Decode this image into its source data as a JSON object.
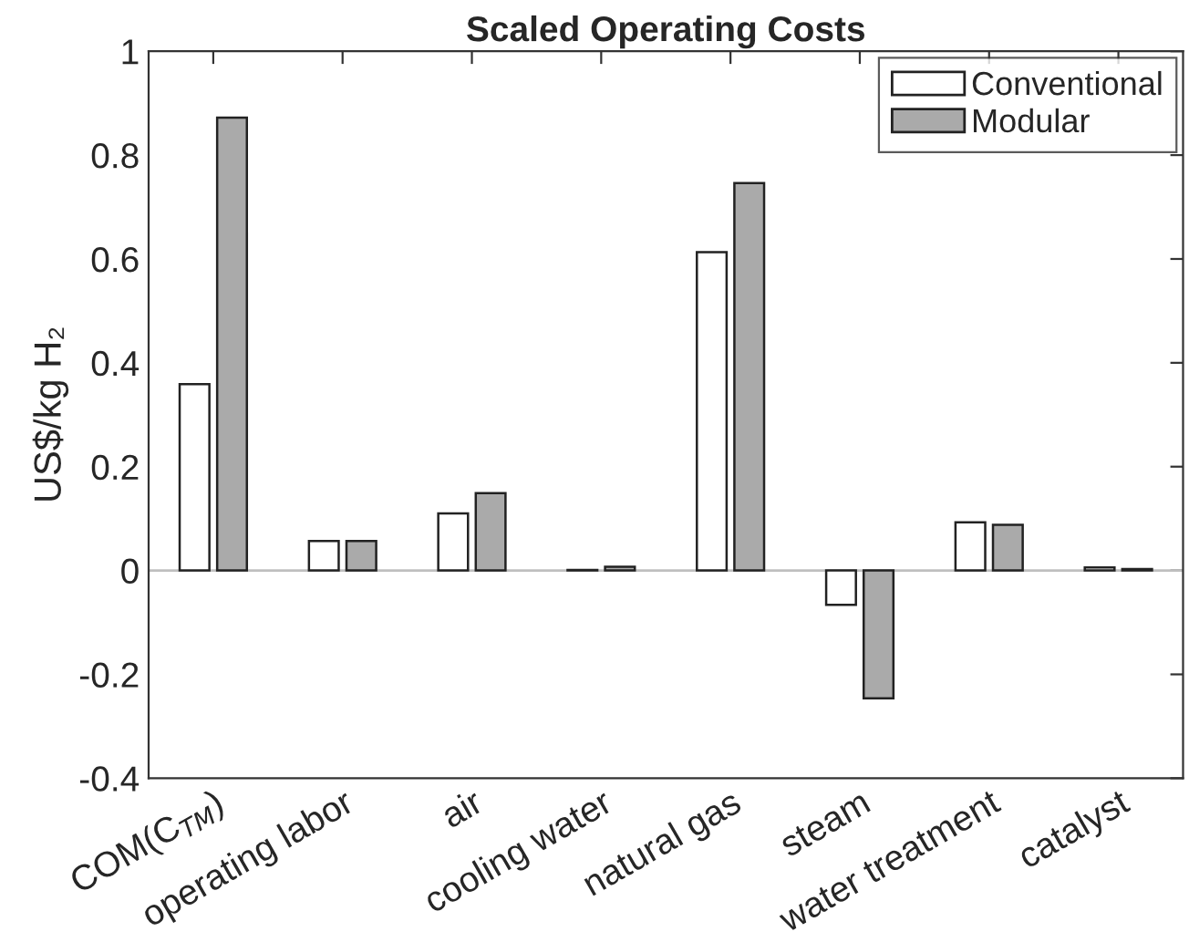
{
  "chart_data": {
    "type": "bar",
    "title": "Scaled Operating Costs",
    "ylabel": "US$/kg H₂",
    "categories": [
      "COM(C$_{TM}$)",
      "operating labor",
      "air",
      "cooling water",
      "natural gas",
      "steam",
      "water treatment",
      "catalyst"
    ],
    "series": [
      {
        "name": "Conventional",
        "color": "#ffffff",
        "values": [
          0.359,
          0.057,
          0.11,
          0.001,
          0.613,
          -0.066,
          0.093,
          0.006
        ]
      },
      {
        "name": "Modular",
        "color": "#aaaaaa",
        "values": [
          0.872,
          0.057,
          0.149,
          0.007,
          0.746,
          -0.246,
          0.088,
          0.003
        ]
      }
    ],
    "ylim": [
      -0.4,
      1
    ],
    "yticks": [
      -0.4,
      -0.2,
      0,
      0.2,
      0.4,
      0.6,
      0.8,
      1
    ],
    "ref_lines": [
      {
        "axis": "y",
        "value": 0,
        "color": "#bfbfbf"
      }
    ],
    "legend": "top right",
    "grid": false
  }
}
